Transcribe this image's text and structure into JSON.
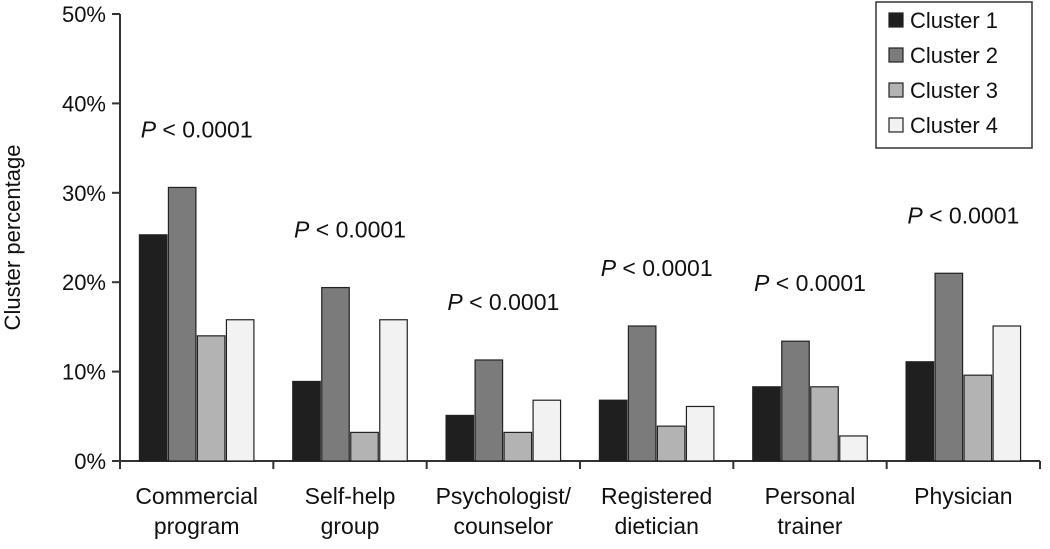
{
  "chart_data": {
    "type": "bar",
    "categories": [
      [
        "Commercial",
        "program"
      ],
      [
        "Self-help",
        "group"
      ],
      [
        "Psychologist/",
        "counselor"
      ],
      [
        "Registered",
        "dietician"
      ],
      [
        "Personal",
        "trainer"
      ],
      [
        "Physician"
      ]
    ],
    "series": [
      {
        "name": "Cluster 1",
        "color": "#1f1f1f",
        "values": [
          25.3,
          8.9,
          5.1,
          6.8,
          8.3,
          11.1
        ]
      },
      {
        "name": "Cluster 2",
        "color": "#7b7b7b",
        "values": [
          30.6,
          19.4,
          11.3,
          15.1,
          13.4,
          21.0
        ]
      },
      {
        "name": "Cluster 3",
        "color": "#b3b3b3",
        "values": [
          14.0,
          3.2,
          3.2,
          3.9,
          8.3,
          9.6
        ]
      },
      {
        "name": "Cluster 4",
        "color": "#f2f2f2",
        "values": [
          15.8,
          15.8,
          6.8,
          6.1,
          2.8,
          15.1
        ]
      }
    ],
    "annotations": [
      "P < 0.0001",
      "P < 0.0001",
      "P < 0.0001",
      "P < 0.0001",
      "P < 0.0001",
      "P < 0.0001"
    ],
    "title": "",
    "xlabel": "",
    "ylabel": "Cluster percentage",
    "ylim": [
      0,
      50
    ],
    "yticks": [
      0,
      10,
      20,
      30,
      40,
      50
    ],
    "ytick_labels": [
      "0%",
      "10%",
      "20%",
      "30%",
      "40%",
      "50%"
    ],
    "grid": false,
    "legend_position": "top-right"
  }
}
